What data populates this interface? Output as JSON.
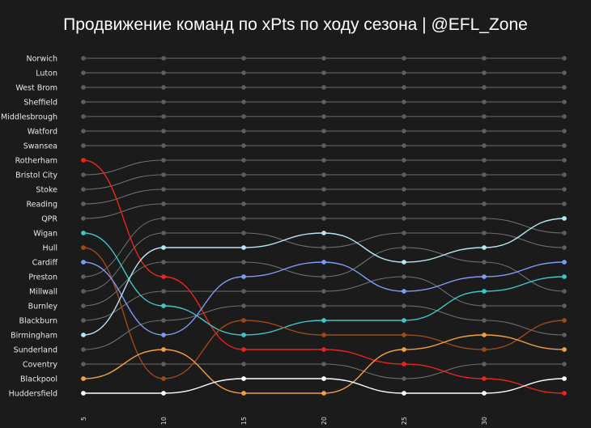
{
  "chart_data": {
    "type": "line",
    "subtype": "bump",
    "title": "Продвижение команд по xPts по ходу сезона | @EFL_Zone",
    "x": [
      5,
      10,
      15,
      20,
      25,
      30,
      35
    ],
    "x_ticks": [
      "5",
      "10",
      "15",
      "20",
      "25",
      "30"
    ],
    "y_direction": "rank, 1 at top",
    "rank_labels": [
      "Norwich",
      "Luton",
      "West Brom",
      "Sheffield",
      "Middlesbrough",
      "Watford",
      "Swansea",
      "Rotherham",
      "Bristol City",
      "Stoke",
      "Reading",
      "QPR",
      "Wigan",
      "Hull",
      "Cardiff",
      "Preston",
      "Millwall",
      "Burnley",
      "Blackburn",
      "Birmingham",
      "Sunderland",
      "Coventry",
      "Blackpool",
      "Huddersfield"
    ],
    "grid": false,
    "legend": "none",
    "colors": {
      "background": "#1b1b1b",
      "default_line": "#6e6e6e",
      "default_dot": "#5e5e5e"
    },
    "series": [
      {
        "name": "Rotherham",
        "color": "#e8251f",
        "values": [
          8,
          16,
          21,
          21,
          22,
          23,
          24
        ]
      },
      {
        "name": "Wigan",
        "color": "#40c4c4",
        "values": [
          13,
          18,
          20,
          19,
          19,
          17,
          16
        ]
      },
      {
        "name": "Hull",
        "color": "#9a4a1c",
        "values": [
          14,
          23,
          19,
          20,
          20,
          21,
          19
        ]
      },
      {
        "name": "Cardiff",
        "color": "#7f9af0",
        "values": [
          15,
          20,
          16,
          15,
          17,
          16,
          15
        ]
      },
      {
        "name": "Birmingham",
        "color": "#b8e4f4",
        "values": [
          20,
          14,
          14,
          13,
          15,
          14,
          12
        ]
      },
      {
        "name": "Blackpool",
        "color": "#f0a040",
        "values": [
          23,
          21,
          24,
          24,
          21,
          20,
          21
        ]
      },
      {
        "name": "Huddersfield",
        "color": "#ffffff",
        "values": [
          24,
          24,
          23,
          23,
          24,
          24,
          23
        ]
      }
    ]
  }
}
